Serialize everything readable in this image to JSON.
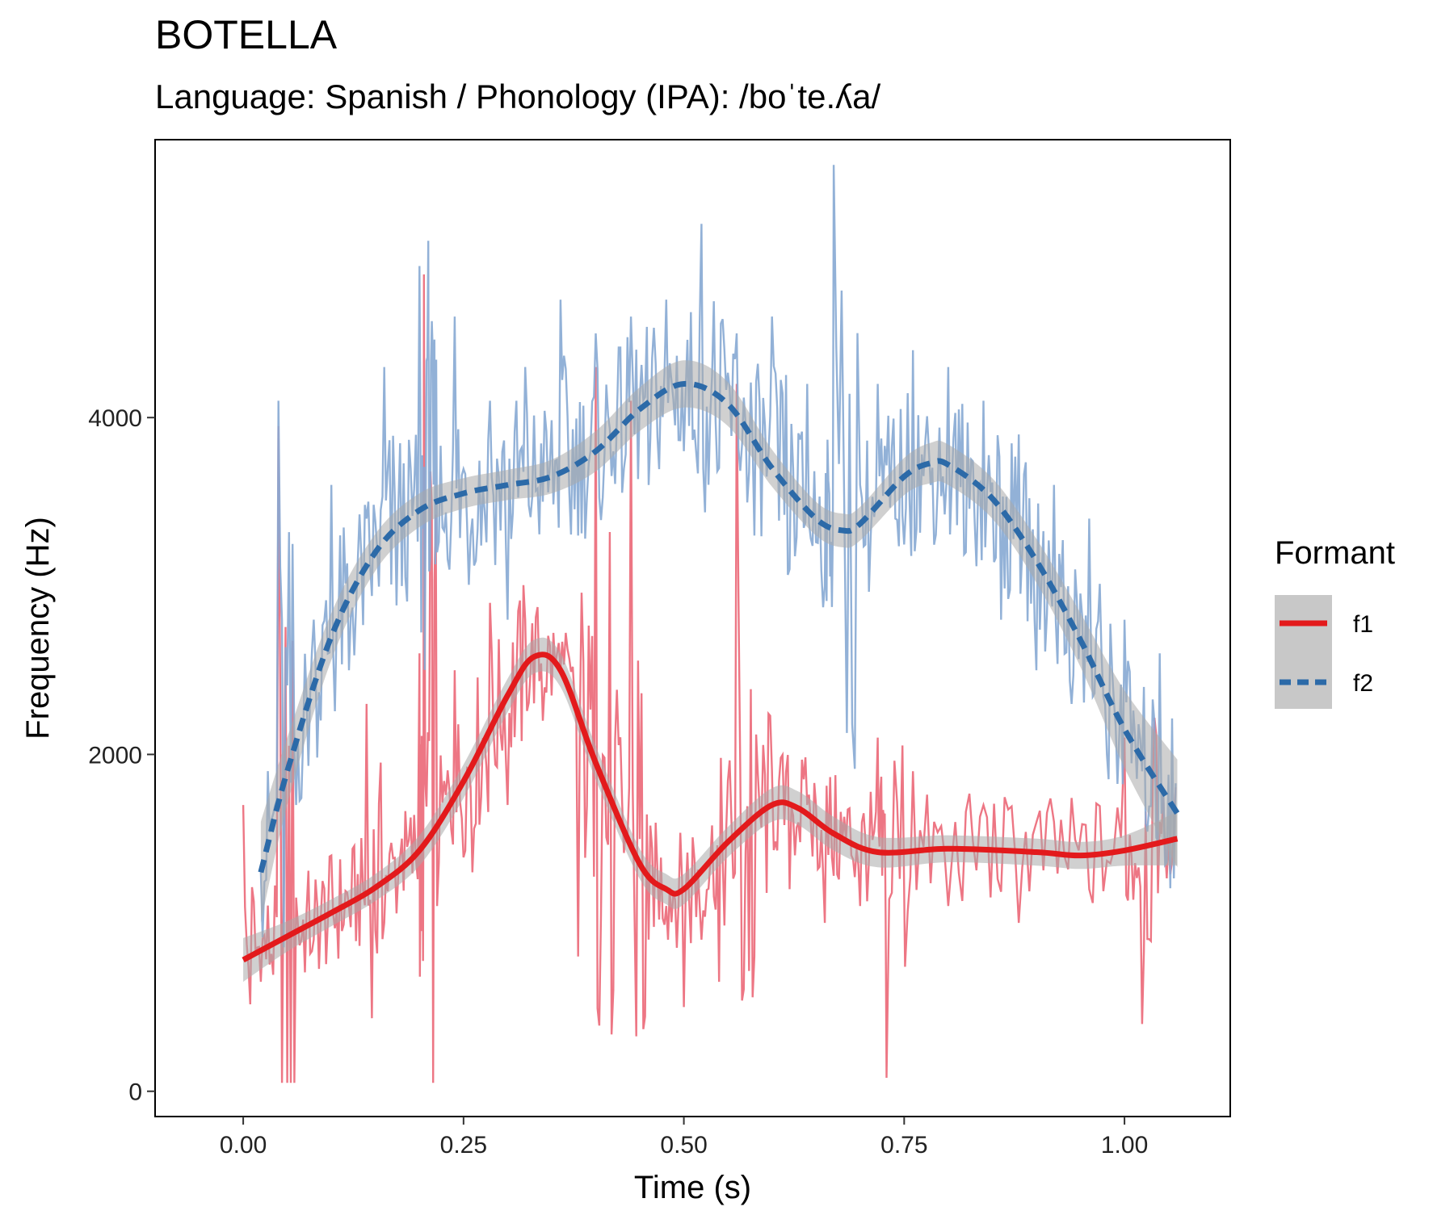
{
  "chart_data": {
    "type": "line",
    "title": "BOTELLA",
    "subtitle": "Language: Spanish / Phonology (IPA): /boˈte.ʎa/",
    "xlabel": "Time (s)",
    "ylabel": "Frequency (Hz)",
    "xlim": [
      -0.1,
      1.12
    ],
    "ylim": [
      -150,
      5650
    ],
    "x_ticks": [
      0,
      0.25,
      0.5,
      0.75,
      1
    ],
    "x_tick_labels": [
      "0.00",
      "0.25",
      "0.50",
      "0.75",
      "1.00"
    ],
    "y_ticks": [
      0,
      2000,
      4000
    ],
    "y_tick_labels": [
      "0",
      "2000",
      "4000"
    ],
    "grid": false,
    "legend": {
      "title": "Formant",
      "position": "right",
      "entries": [
        "f1",
        "f2"
      ]
    },
    "colors": {
      "f1": "#e31a1c",
      "f2": "#2c6aa8",
      "f1_raw": "#ec6f7d",
      "f2_raw": "#86a9d3",
      "ribbon": "#a9a9a9"
    },
    "series": [
      {
        "name": "f1",
        "style": "solid",
        "smooth_x": [
          0.0,
          0.05,
          0.1,
          0.15,
          0.2,
          0.25,
          0.3,
          0.33,
          0.36,
          0.4,
          0.45,
          0.48,
          0.5,
          0.55,
          0.6,
          0.63,
          0.67,
          0.72,
          0.8,
          0.9,
          0.95,
          1.0,
          1.06
        ],
        "smooth_y": [
          780,
          920,
          1060,
          1210,
          1430,
          1840,
          2350,
          2580,
          2500,
          1950,
          1350,
          1200,
          1200,
          1480,
          1700,
          1680,
          1530,
          1420,
          1440,
          1420,
          1400,
          1430,
          1500
        ],
        "ribbon_halfwidth": [
          130,
          90,
          80,
          80,
          90,
          100,
          100,
          100,
          100,
          100,
          90,
          90,
          90,
          90,
          100,
          100,
          100,
          90,
          80,
          80,
          80,
          90,
          160
        ],
        "raw_x": [
          0.0,
          0.02,
          0.04,
          0.06,
          0.08,
          0.1,
          0.12,
          0.14,
          0.16,
          0.18,
          0.2,
          0.205,
          0.22,
          0.24,
          0.26,
          0.28,
          0.3,
          0.32,
          0.34,
          0.36,
          0.38,
          0.4,
          0.42,
          0.44,
          0.46,
          0.48,
          0.5,
          0.52,
          0.54,
          0.56,
          0.58,
          0.6,
          0.62,
          0.64,
          0.66,
          0.68,
          0.7,
          0.72,
          0.73,
          0.76,
          0.8,
          0.84,
          0.88,
          0.92,
          0.96,
          1.0,
          1.02,
          1.04,
          1.06
        ],
        "raw_y": [
          1700,
          650,
          3950,
          1150,
          900,
          1400,
          1100,
          2300,
          1000,
          1500,
          2600,
          4850,
          1100,
          2500,
          1300,
          2900,
          1700,
          2800,
          2200,
          2500,
          800,
          4300,
          600,
          4100,
          900,
          1100,
          500,
          900,
          650,
          4200,
          800,
          1900,
          1200,
          1700,
          1000,
          1500,
          1100,
          2100,
          80,
          1900,
          1100,
          1700,
          1000,
          1600,
          1200,
          2100,
          400,
          1600,
          1200
        ]
      },
      {
        "name": "f2",
        "style": "dashed",
        "smooth_x": [
          0.02,
          0.05,
          0.1,
          0.15,
          0.2,
          0.25,
          0.3,
          0.35,
          0.4,
          0.45,
          0.5,
          0.55,
          0.6,
          0.65,
          0.68,
          0.7,
          0.75,
          0.78,
          0.8,
          0.85,
          0.9,
          0.95,
          1.0,
          1.06
        ],
        "smooth_y": [
          1300,
          1900,
          2700,
          3200,
          3450,
          3550,
          3600,
          3650,
          3800,
          4050,
          4200,
          4080,
          3700,
          3400,
          3330,
          3370,
          3650,
          3730,
          3720,
          3520,
          3150,
          2680,
          2150,
          1650
        ],
        "ribbon_halfwidth": [
          300,
          200,
          140,
          110,
          100,
          90,
          90,
          100,
          120,
          130,
          140,
          130,
          110,
          100,
          100,
          100,
          110,
          120,
          120,
          120,
          130,
          160,
          230,
          320
        ],
        "raw_x": [
          0.02,
          0.04,
          0.06,
          0.08,
          0.1,
          0.12,
          0.14,
          0.16,
          0.18,
          0.2,
          0.21,
          0.22,
          0.24,
          0.26,
          0.28,
          0.3,
          0.32,
          0.34,
          0.36,
          0.38,
          0.4,
          0.42,
          0.44,
          0.46,
          0.48,
          0.5,
          0.52,
          0.54,
          0.56,
          0.58,
          0.6,
          0.62,
          0.64,
          0.66,
          0.67,
          0.7,
          0.72,
          0.74,
          0.76,
          0.78,
          0.8,
          0.82,
          0.84,
          0.86,
          0.88,
          0.9,
          0.92,
          0.94,
          0.96,
          0.98,
          1.0,
          1.02,
          1.04,
          1.06
        ],
        "raw_y": [
          1300,
          4100,
          1700,
          2800,
          3600,
          2500,
          3400,
          4300,
          3000,
          4900,
          5050,
          3200,
          4600,
          3400,
          4100,
          2800,
          4300,
          3500,
          4700,
          3300,
          4500,
          3800,
          4600,
          3600,
          4700,
          3800,
          5150,
          3700,
          4500,
          3300,
          4600,
          3100,
          4200,
          3000,
          5500,
          3600,
          4200,
          3400,
          4400,
          3600,
          4300,
          3200,
          4100,
          2800,
          3900,
          2500,
          3600,
          2300,
          3400,
          2000,
          2800,
          1900,
          2600,
          1900
        ]
      }
    ]
  }
}
